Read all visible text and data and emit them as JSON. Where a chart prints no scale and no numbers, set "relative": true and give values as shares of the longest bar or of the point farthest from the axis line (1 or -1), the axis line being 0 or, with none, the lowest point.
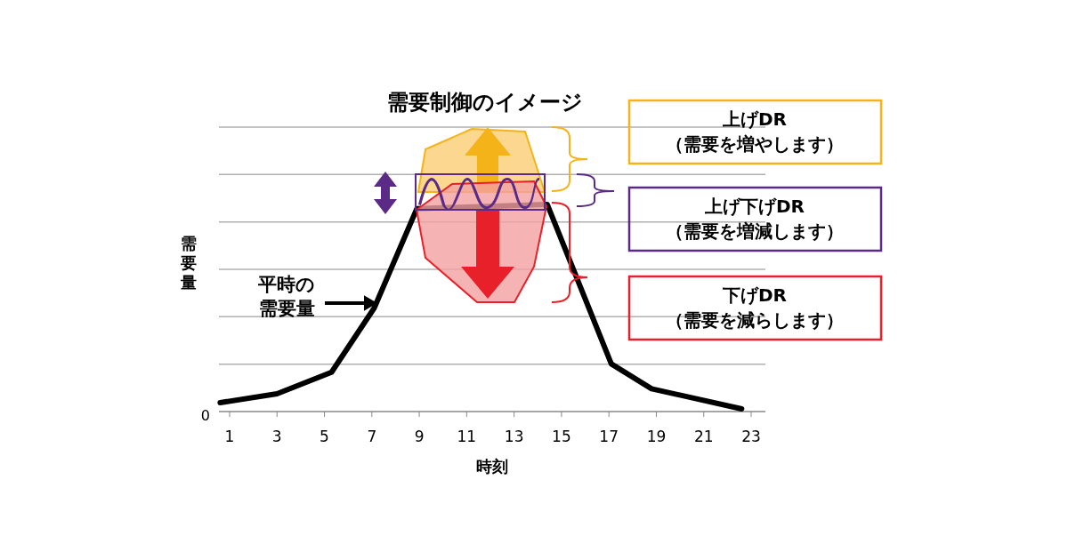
{
  "chart_data": {
    "type": "line",
    "title": "需要制御のイメージ",
    "xlabel": "時刻",
    "ylabel": "需要量",
    "relative": true,
    "grid": true,
    "x": [
      0.6,
      3,
      5.3,
      7.1,
      8.9,
      14.4,
      17.1,
      18.8,
      22.6
    ],
    "xlim": [
      0.55,
      23.6
    ],
    "xticks": [
      1,
      3,
      5,
      7,
      9,
      11,
      13,
      15,
      17,
      19,
      21,
      23
    ],
    "series": [
      {
        "color": "#000000",
        "values": [
          0.043,
          0.086,
          0.19,
          0.5,
          0.98,
          1,
          0.23,
          0.11,
          0.013
        ]
      }
    ],
    "annotations": [
      "0",
      "平時の需要量",
      "上げDR",
      "（需要を増やします）",
      "上げ下げDR",
      "（需要を増減します）",
      "下げDR",
      "（需要を減らします）"
    ]
  }
}
